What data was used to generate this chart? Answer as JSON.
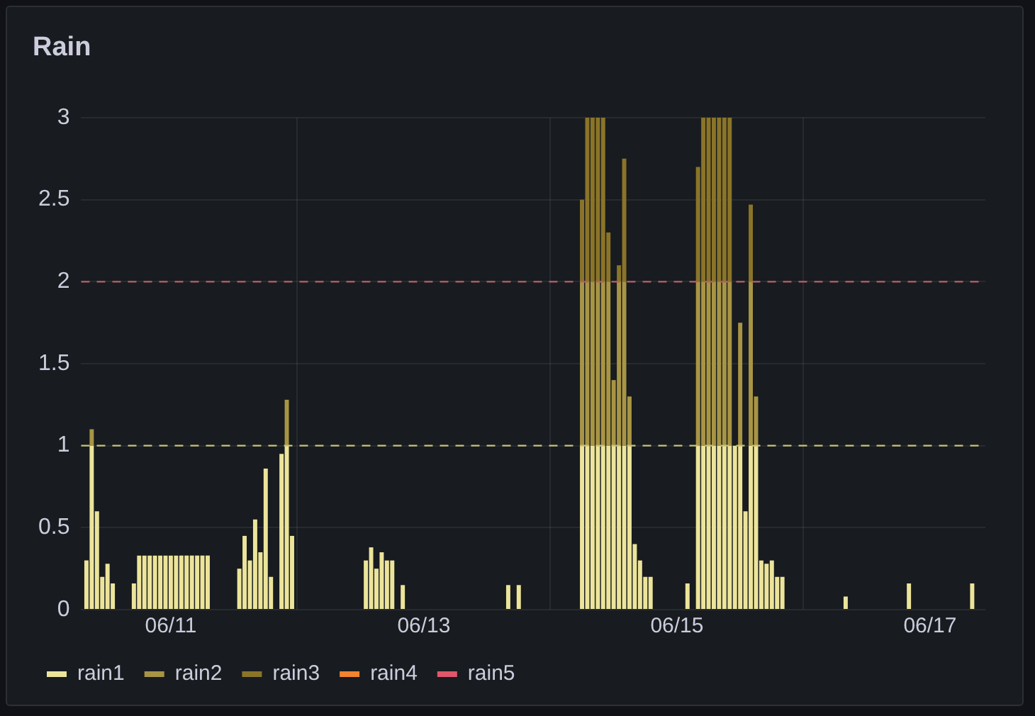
{
  "chart_data": {
    "type": "bar",
    "title": "Rain",
    "stacked": true,
    "grid": true,
    "legend": "bottom left",
    "xlim": [
      "--06-10T07:00",
      "--06-17T10:30"
    ],
    "xticks": [
      {
        "value": "--06-11",
        "label": "06/11"
      },
      {
        "value": "--06-13",
        "label": "06/13"
      },
      {
        "value": "--06-15",
        "label": "06/15"
      },
      {
        "value": "--06-17",
        "label": "06/17"
      }
    ],
    "ylim": [
      0,
      3
    ],
    "yticks": [
      0,
      0.5,
      1,
      1.5,
      2,
      2.5,
      3
    ],
    "ref_lines": [
      {
        "axis": "y",
        "value": 1,
        "color": "#c9c27a",
        "line_style": "dashed"
      },
      {
        "axis": "y",
        "value": 2,
        "color": "#b5606a",
        "line_style": "dashed"
      }
    ],
    "x": [
      "--06-10T08:00",
      "--06-10T09:00",
      "--06-10T10:00",
      "--06-10T11:00",
      "--06-10T12:00",
      "--06-10T13:00",
      "--06-10T17:00",
      "--06-10T18:00",
      "--06-10T19:00",
      "--06-10T20:00",
      "--06-10T21:00",
      "--06-10T22:00",
      "--06-10T23:00",
      "--06-11T00:00",
      "--06-11T01:00",
      "--06-11T02:00",
      "--06-11T03:00",
      "--06-11T04:00",
      "--06-11T05:00",
      "--06-11T06:00",
      "--06-11T07:00",
      "--06-11T13:00",
      "--06-11T14:00",
      "--06-11T15:00",
      "--06-11T16:00",
      "--06-11T17:00",
      "--06-11T18:00",
      "--06-11T19:00",
      "--06-11T21:00",
      "--06-11T22:00",
      "--06-11T23:00",
      "--06-12T13:00",
      "--06-12T14:00",
      "--06-12T15:00",
      "--06-12T16:00",
      "--06-12T17:00",
      "--06-12T18:00",
      "--06-12T20:00",
      "--06-13T16:00",
      "--06-13T18:00",
      "--06-14T06:00",
      "--06-14T07:00",
      "--06-14T08:00",
      "--06-14T09:00",
      "--06-14T10:00",
      "--06-14T11:00",
      "--06-14T12:00",
      "--06-14T13:00",
      "--06-14T14:00",
      "--06-14T15:00",
      "--06-14T16:00",
      "--06-14T17:00",
      "--06-14T18:00",
      "--06-14T19:00",
      "--06-15T02:00",
      "--06-15T04:00",
      "--06-15T05:00",
      "--06-15T06:00",
      "--06-15T07:00",
      "--06-15T08:00",
      "--06-15T09:00",
      "--06-15T10:00",
      "--06-15T11:00",
      "--06-15T12:00",
      "--06-15T13:00",
      "--06-15T14:00",
      "--06-15T15:00",
      "--06-15T16:00",
      "--06-15T17:00",
      "--06-15T18:00",
      "--06-15T19:00",
      "--06-15T20:00",
      "--06-16T08:00",
      "--06-16T20:00",
      "--06-17T08:00"
    ],
    "series": [
      {
        "name": "rain1",
        "color": "#ece49a",
        "values": [
          0.3,
          1,
          0.6,
          0.2,
          0.28,
          0.16,
          0.16,
          0.33,
          0.33,
          0.33,
          0.33,
          0.33,
          0.33,
          0.33,
          0.33,
          0.33,
          0.33,
          0.33,
          0.33,
          0.33,
          0.33,
          0.25,
          0.45,
          0.3,
          0.55,
          0.35,
          0.86,
          0.2,
          0.95,
          1,
          0.45,
          0.3,
          0.38,
          0.25,
          0.35,
          0.3,
          0.3,
          0.15,
          0.15,
          0.15,
          1,
          1,
          1,
          1,
          1,
          1,
          1,
          1,
          1,
          1,
          0.4,
          0.3,
          0.2,
          0.2,
          0.16,
          1,
          1,
          1,
          1,
          1,
          1,
          1,
          1,
          1,
          0.6,
          1,
          1,
          0.3,
          0.28,
          0.3,
          0.2,
          0.2,
          0.08,
          0.16,
          0.16
        ]
      },
      {
        "name": "rain2",
        "color": "#a89544",
        "values": [
          null,
          0.1,
          null,
          null,
          null,
          null,
          null,
          null,
          null,
          null,
          null,
          null,
          null,
          null,
          null,
          null,
          null,
          null,
          null,
          null,
          null,
          null,
          null,
          null,
          null,
          null,
          null,
          null,
          null,
          0.28,
          null,
          null,
          null,
          null,
          null,
          null,
          null,
          null,
          null,
          null,
          1,
          1,
          1,
          1,
          1,
          1,
          0.4,
          1,
          1,
          0.3,
          null,
          null,
          null,
          null,
          null,
          1,
          1,
          1,
          1,
          1,
          1,
          1,
          null,
          0.75,
          null,
          1,
          0.3,
          null,
          null,
          null,
          null,
          null,
          null,
          null,
          null
        ]
      },
      {
        "name": "rain3",
        "color": "#8a7428",
        "values": [
          null,
          null,
          null,
          null,
          null,
          null,
          null,
          null,
          null,
          null,
          null,
          null,
          null,
          null,
          null,
          null,
          null,
          null,
          null,
          null,
          null,
          null,
          null,
          null,
          null,
          null,
          null,
          null,
          null,
          null,
          null,
          null,
          null,
          null,
          null,
          null,
          null,
          null,
          null,
          null,
          0.5,
          1,
          1,
          1,
          1,
          0.3,
          null,
          0.1,
          0.75,
          null,
          null,
          null,
          null,
          null,
          null,
          0.7,
          1,
          1,
          1,
          1,
          1,
          1,
          null,
          null,
          null,
          0.47,
          null,
          null,
          null,
          null,
          null,
          null,
          null,
          null,
          null
        ]
      },
      {
        "name": "rain4",
        "color": "#f2832f",
        "values": [
          null,
          null,
          null,
          null,
          null,
          null,
          null,
          null,
          null,
          null,
          null,
          null,
          null,
          null,
          null,
          null,
          null,
          null,
          null,
          null,
          null,
          null,
          null,
          null,
          null,
          null,
          null,
          null,
          null,
          null,
          null,
          null,
          null,
          null,
          null,
          null,
          null,
          null,
          null,
          null,
          null,
          null,
          null,
          null,
          null,
          null,
          null,
          null,
          null,
          null,
          null,
          null,
          null,
          null,
          null,
          null,
          null,
          null,
          null,
          null,
          null,
          null,
          null,
          null,
          null,
          null,
          null,
          null,
          null,
          null,
          null,
          null,
          null,
          null,
          null
        ]
      },
      {
        "name": "rain5",
        "color": "#e0566b",
        "values": [
          null,
          null,
          null,
          null,
          null,
          null,
          null,
          null,
          null,
          null,
          null,
          null,
          null,
          null,
          null,
          null,
          null,
          null,
          null,
          null,
          null,
          null,
          null,
          null,
          null,
          null,
          null,
          null,
          null,
          null,
          null,
          null,
          null,
          null,
          null,
          null,
          null,
          null,
          null,
          null,
          null,
          null,
          null,
          null,
          null,
          null,
          null,
          null,
          null,
          null,
          null,
          null,
          null,
          null,
          null,
          null,
          null,
          null,
          null,
          null,
          null,
          null,
          null,
          null,
          null,
          null,
          null,
          null,
          null,
          null,
          null,
          null,
          null,
          null,
          null
        ]
      }
    ]
  }
}
